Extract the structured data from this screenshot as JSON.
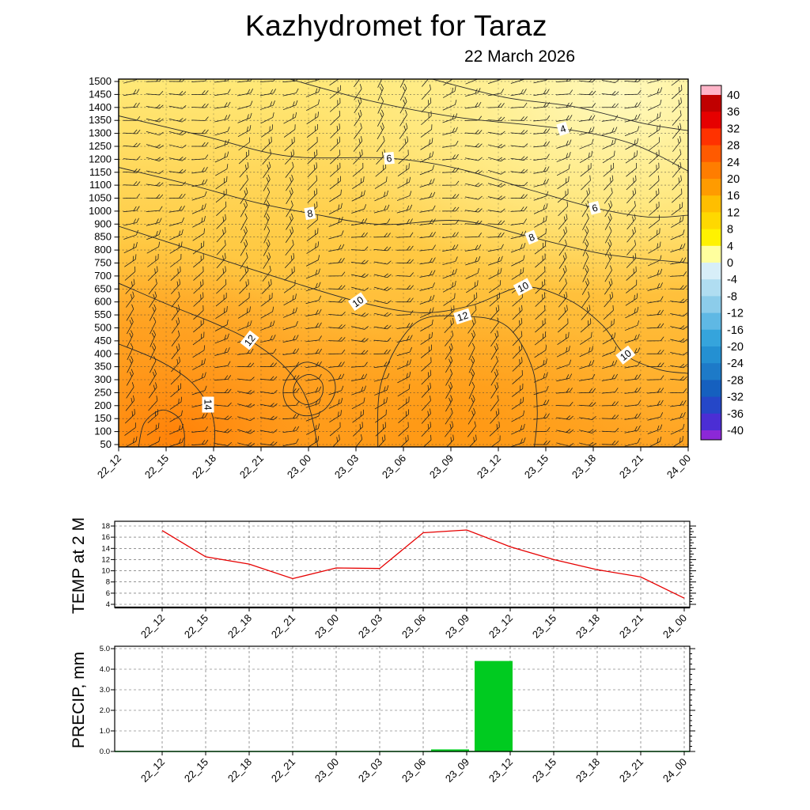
{
  "header": {
    "title": "Kazhydromet  for Taraz",
    "date": "22 March 2026"
  },
  "chart_data": [
    {
      "type": "heatmap",
      "name": "upper-air time-height meteogram (temperature fill, isotherm contours, wind barbs)",
      "x_tick_labels": [
        "22_12",
        "22_15",
        "22_18",
        "22_21",
        "23_00",
        "23_03",
        "23_06",
        "23_09",
        "23_12",
        "23_15",
        "23_18",
        "23_21",
        "24_00"
      ],
      "y_tick_labels": [
        1500,
        1450,
        1400,
        1350,
        1300,
        1250,
        1200,
        1150,
        1100,
        1050,
        1000,
        900,
        850,
        800,
        750,
        700,
        650,
        600,
        550,
        500,
        450,
        400,
        350,
        300,
        250,
        200,
        150,
        100,
        50
      ],
      "contour_labels": [
        {
          "text": "4",
          "x": 0.78,
          "y": 0.135,
          "rot": -18
        },
        {
          "text": "6",
          "x": 0.475,
          "y": 0.215,
          "rot": -5
        },
        {
          "text": "6",
          "x": 0.836,
          "y": 0.35,
          "rot": -15
        },
        {
          "text": "8",
          "x": 0.336,
          "y": 0.365,
          "rot": -10
        },
        {
          "text": "8",
          "x": 0.725,
          "y": 0.43,
          "rot": -22
        },
        {
          "text": "10",
          "x": 0.42,
          "y": 0.605,
          "rot": -35
        },
        {
          "text": "10",
          "x": 0.71,
          "y": 0.565,
          "rot": -28
        },
        {
          "text": "12",
          "x": 0.604,
          "y": 0.645,
          "rot": -18
        },
        {
          "text": "12",
          "x": 0.23,
          "y": 0.71,
          "rot": -52
        },
        {
          "text": "10",
          "x": 0.89,
          "y": 0.75,
          "rot": -38
        },
        {
          "text": "14",
          "x": 0.157,
          "y": 0.885,
          "rot": 90
        }
      ],
      "colorbar": {
        "tick_labels": [
          40,
          36,
          32,
          28,
          24,
          20,
          16,
          12,
          8,
          4,
          0,
          -4,
          -8,
          -12,
          -16,
          -20,
          -24,
          -28,
          -32,
          -36,
          -40
        ],
        "colors_top_to_bottom": [
          "#ffb4c8",
          "#c00000",
          "#e60000",
          "#ff3200",
          "#ff5a00",
          "#ff7d00",
          "#ff9b00",
          "#ffbe00",
          "#ffd800",
          "#fff200",
          "#ffff9e",
          "#d7eef8",
          "#b0ddf1",
          "#8cccea",
          "#5fb8e4",
          "#35a4dc",
          "#2490d2",
          "#1d7ac8",
          "#1560bf",
          "#2547c8",
          "#4b2ed4",
          "#8c28d7"
        ]
      },
      "wind_barbs": "wind barbs plotted at every level row across all times"
    },
    {
      "type": "line",
      "title": "TEMP at 2 M",
      "x": [
        "22_12",
        "22_15",
        "22_18",
        "22_21",
        "23_00",
        "23_03",
        "23_06",
        "23_09",
        "23_12",
        "23_15",
        "23_18",
        "23_21",
        "24_00"
      ],
      "values": [
        17.2,
        12.5,
        11.2,
        8.6,
        10.5,
        10.4,
        16.8,
        17.3,
        14.3,
        12.0,
        10.2,
        8.9,
        5.1
      ],
      "ylim": [
        4,
        18
      ],
      "y_ticks": [
        18,
        16,
        14,
        12,
        10,
        8,
        6,
        4
      ],
      "line_color": "#e60000",
      "grid": "dashed"
    },
    {
      "type": "bar",
      "title": "PRECIP, mm",
      "x": [
        "22_12",
        "22_15",
        "22_18",
        "22_21",
        "23_00",
        "23_03",
        "23_06",
        "23_09",
        "23_12",
        "23_15",
        "23_18",
        "23_21",
        "24_00"
      ],
      "values": [
        0,
        0,
        0,
        0,
        0,
        0,
        0,
        0.1,
        4.4,
        0,
        0,
        0,
        0
      ],
      "ylim": [
        0,
        5
      ],
      "y_ticks": [
        "5.0",
        "4.0",
        "3.0",
        "2.0",
        "1.0",
        "0.0"
      ],
      "bar_color": "#00cb20",
      "grid": "dashed"
    }
  ]
}
